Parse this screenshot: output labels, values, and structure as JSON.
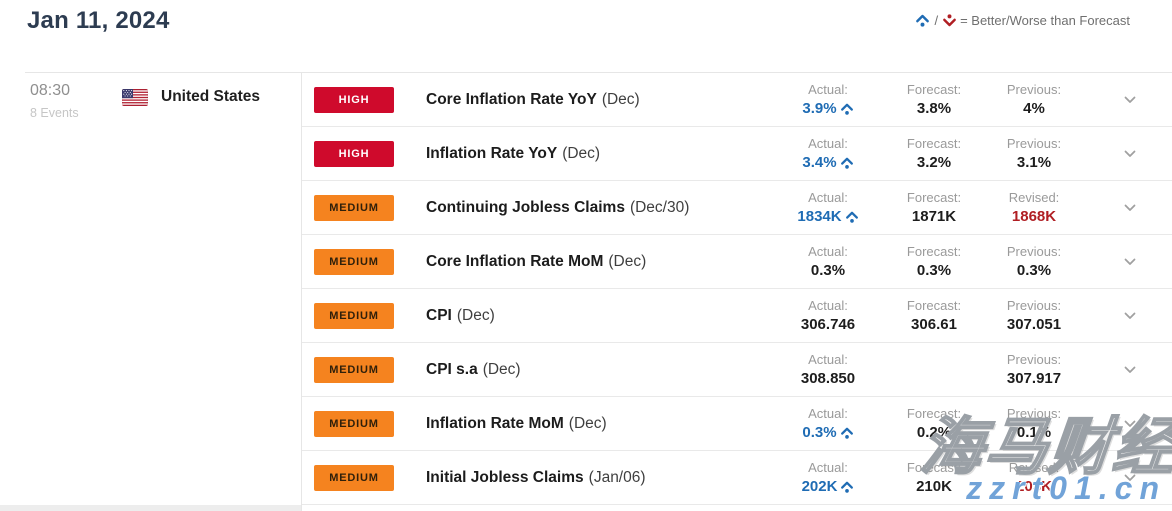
{
  "header": {
    "title": "Jan 11, 2024"
  },
  "legend": {
    "separator": "/",
    "equals_text": "= Better/Worse than Forecast"
  },
  "group": {
    "time": "08:30",
    "events_count": "8 Events",
    "country": "United States"
  },
  "labels": {
    "actual": "Actual:",
    "forecast": "Forecast:",
    "previous": "Previous:",
    "revised": "Revised:"
  },
  "importance_labels": {
    "high": "HIGH",
    "medium": "MEDIUM"
  },
  "colors": {
    "title_navy": "#2d3c51",
    "better_blue": "#1f6cb4",
    "worse_red": "#b01e23",
    "high_badge": "#cf0a2c",
    "medium_badge": "#f5831f"
  },
  "events": [
    {
      "importance": "high",
      "name": "Core Inflation Rate YoY",
      "period": "(Dec)",
      "actual": "3.9%",
      "actual_better": true,
      "forecast": "3.8%",
      "third_label": "previous",
      "third_value": "4%",
      "third_revised": false
    },
    {
      "importance": "high",
      "name": "Inflation Rate YoY",
      "period": "(Dec)",
      "actual": "3.4%",
      "actual_better": true,
      "forecast": "3.2%",
      "third_label": "previous",
      "third_value": "3.1%",
      "third_revised": false
    },
    {
      "importance": "medium",
      "name": "Continuing Jobless Claims",
      "period": "(Dec/30)",
      "actual": "1834K",
      "actual_better": true,
      "forecast": "1871K",
      "third_label": "revised",
      "third_value": "1868K",
      "third_revised": true
    },
    {
      "importance": "medium",
      "name": "Core Inflation Rate MoM",
      "period": "(Dec)",
      "actual": "0.3%",
      "actual_better": false,
      "forecast": "0.3%",
      "third_label": "previous",
      "third_value": "0.3%",
      "third_revised": false
    },
    {
      "importance": "medium",
      "name": "CPI",
      "period": "(Dec)",
      "actual": "306.746",
      "actual_better": false,
      "forecast": "306.61",
      "third_label": "previous",
      "third_value": "307.051",
      "third_revised": false
    },
    {
      "importance": "medium",
      "name": "CPI s.a",
      "period": "(Dec)",
      "actual": "308.850",
      "actual_better": false,
      "forecast": "",
      "third_label": "previous",
      "third_value": "307.917",
      "third_revised": false
    },
    {
      "importance": "medium",
      "name": "Inflation Rate MoM",
      "period": "(Dec)",
      "actual": "0.3%",
      "actual_better": true,
      "forecast": "0.2%",
      "third_label": "previous",
      "third_value": "0.1%",
      "third_revised": false
    },
    {
      "importance": "medium",
      "name": "Initial Jobless Claims",
      "period": "(Jan/06)",
      "actual": "202K",
      "actual_better": true,
      "forecast": "210K",
      "third_label": "revised",
      "third_value": "203K",
      "third_revised": true
    }
  ],
  "watermark": {
    "brand": "海马财经",
    "domain": "zzrt01.cn"
  }
}
